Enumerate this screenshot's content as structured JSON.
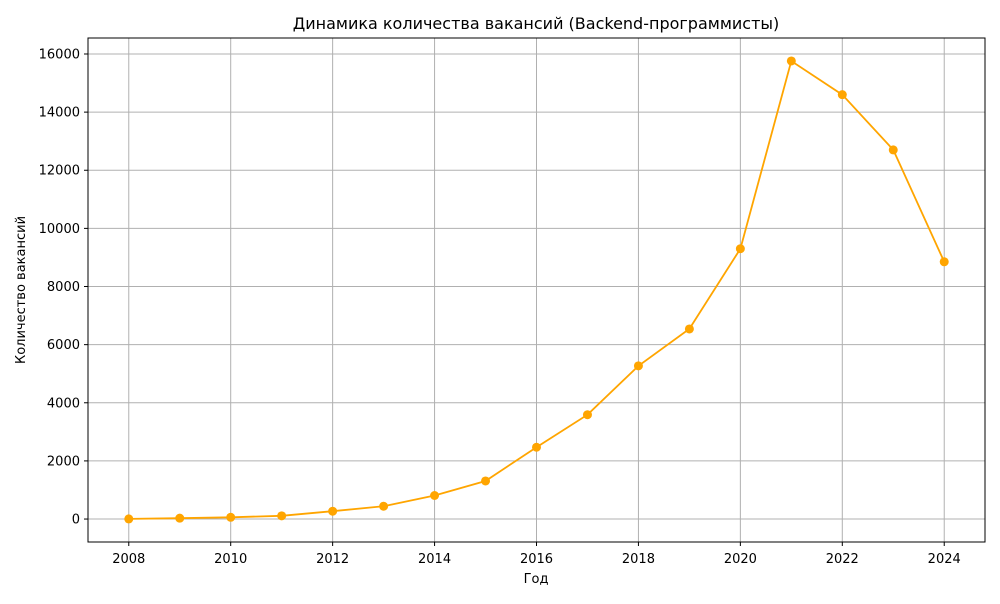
{
  "chart_data": {
    "type": "line",
    "title": "Динамика количества вакансий (Backend-программисты)",
    "xlabel": "Год",
    "ylabel": "Количество вакансий",
    "x": [
      2008,
      2009,
      2010,
      2011,
      2012,
      2013,
      2014,
      2015,
      2016,
      2017,
      2018,
      2019,
      2020,
      2021,
      2022,
      2023,
      2024
    ],
    "series": [
      {
        "values": [
          5,
          30,
          60,
          110,
          270,
          440,
          810,
          1310,
          2470,
          3590,
          5270,
          6540,
          9300,
          15760,
          14600,
          12700,
          8850
        ],
        "color": "#ffa500",
        "marker": "circle"
      }
    ],
    "xlim": [
      2007.2,
      2024.8
    ],
    "ylim": [
      -790,
      16550
    ],
    "xticks": [
      2008,
      2010,
      2012,
      2014,
      2016,
      2018,
      2020,
      2022,
      2024
    ],
    "yticks": [
      0,
      2000,
      4000,
      6000,
      8000,
      10000,
      12000,
      14000,
      16000
    ],
    "grid": true,
    "colors": {
      "line": "#ffa500",
      "grid": "#b0b0b0",
      "axes": "#000000"
    }
  }
}
